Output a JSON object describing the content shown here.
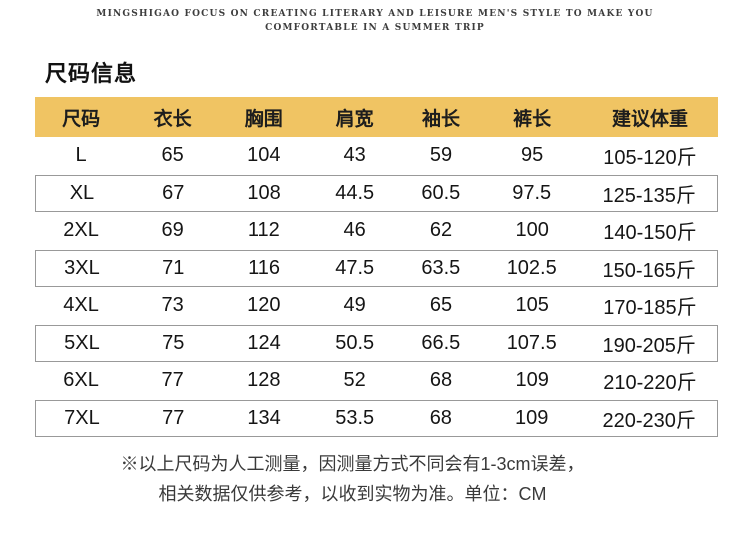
{
  "slogan": {
    "line1": "MINGSHIGAO FOCUS ON CREATING LITERARY AND LEISURE MEN'S STYLE TO MAKE YOU",
    "line2": "COMFORTABLE IN A SUMMER TRIP"
  },
  "title": "尺码信息",
  "table": {
    "headers": [
      "尺码",
      "衣长",
      "胸围",
      "肩宽",
      "袖长",
      "裤长",
      "建议体重"
    ],
    "rows": [
      [
        "L",
        "65",
        "104",
        "43",
        "59",
        "95",
        "105-120斤"
      ],
      [
        "XL",
        "67",
        "108",
        "44.5",
        "60.5",
        "97.5",
        "125-135斤"
      ],
      [
        "2XL",
        "69",
        "112",
        "46",
        "62",
        "100",
        "140-150斤"
      ],
      [
        "3XL",
        "71",
        "116",
        "47.5",
        "63.5",
        "102.5",
        "150-165斤"
      ],
      [
        "4XL",
        "73",
        "120",
        "49",
        "65",
        "105",
        "170-185斤"
      ],
      [
        "5XL",
        "75",
        "124",
        "50.5",
        "66.5",
        "107.5",
        "190-205斤"
      ],
      [
        "6XL",
        "77",
        "128",
        "52",
        "68",
        "109",
        "210-220斤"
      ],
      [
        "7XL",
        "77",
        "134",
        "53.5",
        "68",
        "109",
        "220-230斤"
      ]
    ]
  },
  "footer": {
    "line1": "※以上尺码为人工测量，因测量方式不同会有1-3cm误差，",
    "line2": "相关数据仅供参考，以收到实物为准。单位：CM"
  },
  "colors": {
    "header_bg": "#f0c463",
    "row_border": "#999999",
    "text": "#1a1a1a"
  }
}
